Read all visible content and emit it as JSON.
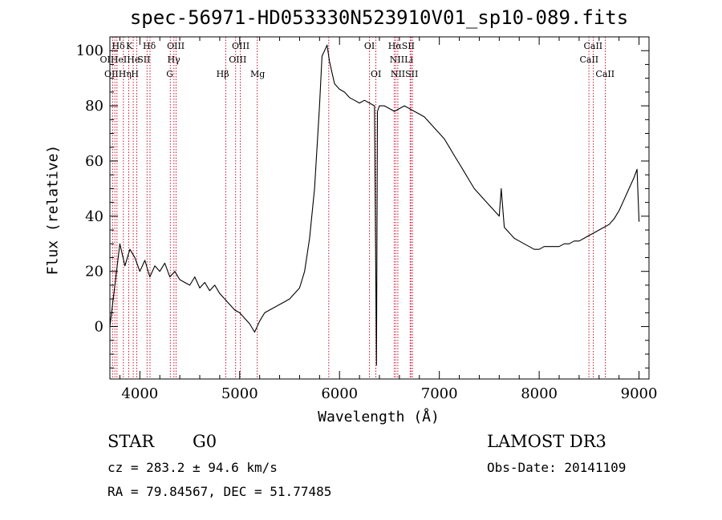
{
  "chart_data": {
    "type": "line",
    "title": "spec-56971-HD053330N523910V01_sp10-089.fits",
    "xlabel": "Wavelength (Å)",
    "ylabel": "Flux (relative)",
    "xlim": [
      3700,
      9100
    ],
    "ylim": [
      -19,
      105
    ],
    "xticks": [
      4000,
      5000,
      6000,
      7000,
      8000,
      9000
    ],
    "yticks": [
      0,
      20,
      40,
      60,
      80,
      100
    ],
    "grid": false,
    "series": [
      {
        "x": [
          3700,
          3750,
          3800,
          3850,
          3900,
          3950,
          4000,
          4050,
          4100,
          4150,
          4200,
          4250,
          4300,
          4350,
          4400,
          4450,
          4500,
          4550,
          4600,
          4650,
          4700,
          4750,
          4800,
          4850,
          4900,
          4950,
          5000,
          5050,
          5100,
          5150,
          5200,
          5250,
          5300,
          5350,
          5400,
          5450,
          5500,
          5550,
          5600,
          5650,
          5700,
          5750,
          5800,
          5825,
          5850,
          5875,
          5900,
          5950,
          6000,
          6050,
          6100,
          6150,
          6200,
          6250,
          6300,
          6350,
          6370,
          6380,
          6400,
          6450,
          6500,
          6550,
          6600,
          6650,
          6700,
          6750,
          6800,
          6850,
          6900,
          6950,
          7000,
          7050,
          7100,
          7150,
          7200,
          7250,
          7300,
          7350,
          7400,
          7450,
          7500,
          7550,
          7600,
          7620,
          7650,
          7700,
          7750,
          7800,
          7850,
          7900,
          7950,
          8000,
          8050,
          8100,
          8150,
          8200,
          8250,
          8300,
          8350,
          8400,
          8450,
          8500,
          8550,
          8600,
          8650,
          8700,
          8750,
          8800,
          8850,
          8900,
          8950,
          8980,
          9000
        ],
        "y": [
          0,
          15,
          30,
          22,
          28,
          25,
          20,
          24,
          18,
          22,
          20,
          23,
          18,
          20,
          17,
          16,
          15,
          18,
          14,
          16,
          13,
          15,
          12,
          10,
          8,
          6,
          5,
          3,
          1,
          -2,
          2,
          5,
          6,
          7,
          8,
          9,
          10,
          12,
          14,
          20,
          32,
          50,
          80,
          98,
          100,
          102,
          96,
          88,
          86,
          85,
          83,
          82,
          81,
          82,
          81,
          80,
          -14,
          78,
          80,
          80,
          79,
          78,
          79,
          80,
          79,
          78,
          77,
          76,
          74,
          72,
          70,
          68,
          65,
          62,
          59,
          56,
          53,
          50,
          48,
          46,
          44,
          42,
          40,
          50,
          36,
          34,
          32,
          31,
          30,
          29,
          28,
          28,
          29,
          29,
          29,
          29,
          30,
          30,
          31,
          31,
          32,
          33,
          34,
          35,
          36,
          37,
          39,
          42,
          46,
          50,
          54,
          57,
          38
        ]
      }
    ],
    "lines": [
      {
        "name": "OII",
        "x": 3727
      },
      {
        "name": "Hθ",
        "x": 3750
      },
      {
        "name": "Hη",
        "x": 3771
      },
      {
        "name": "Hζ",
        "x": 3835
      },
      {
        "name": "K",
        "x": 3889
      },
      {
        "name": "Hε",
        "x": 3934
      },
      {
        "name": "H",
        "x": 3969
      },
      {
        "name": "SII",
        "x": 4072
      },
      {
        "name": "Hδ",
        "x": 4102
      },
      {
        "name": "G",
        "x": 4305
      },
      {
        "name": "Hγ",
        "x": 4341
      },
      {
        "name": "OIII",
        "x": 4363
      },
      {
        "name": "Hβ",
        "x": 4861
      },
      {
        "name": "OIII",
        "x": 4959
      },
      {
        "name": "OIII",
        "x": 5007
      },
      {
        "name": "Mg",
        "x": 5175
      },
      {
        "name": "OI",
        "x": 5892
      },
      {
        "name": "OI",
        "x": 6300
      },
      {
        "name": "OI",
        "x": 6364
      },
      {
        "name": "NII",
        "x": 6548
      },
      {
        "name": "Hα",
        "x": 6563
      },
      {
        "name": "NII",
        "x": 6584
      },
      {
        "name": "Li",
        "x": 6708
      },
      {
        "name": "SII",
        "x": 6716
      },
      {
        "name": "SII",
        "x": 6731
      },
      {
        "name": "CaII",
        "x": 8498
      },
      {
        "name": "CaII",
        "x": 8542
      },
      {
        "name": "CaII",
        "x": 8662
      }
    ],
    "line_labels": [
      {
        "text": "Hδ",
        "x": 3785,
        "row": 1
      },
      {
        "text": "K",
        "x": 3895,
        "row": 1
      },
      {
        "text": "Hδ",
        "x": 4095,
        "row": 1
      },
      {
        "text": "OIII",
        "x": 4360,
        "row": 1
      },
      {
        "text": "OIII",
        "x": 5010,
        "row": 1
      },
      {
        "text": "OI",
        "x": 6300,
        "row": 1
      },
      {
        "text": "HαSII",
        "x": 6620,
        "row": 1
      },
      {
        "text": "CaII",
        "x": 8540,
        "row": 1
      },
      {
        "text": "OIHeIHe",
        "x": 3800,
        "row": 2
      },
      {
        "text": "SII",
        "x": 4040,
        "row": 2
      },
      {
        "text": "Hγ",
        "x": 4340,
        "row": 2
      },
      {
        "text": "OIII",
        "x": 4980,
        "row": 2
      },
      {
        "text": "NIILi",
        "x": 6620,
        "row": 2
      },
      {
        "text": "CaII",
        "x": 8500,
        "row": 2
      },
      {
        "text": "OIIHη",
        "x": 3780,
        "row": 3
      },
      {
        "text": "H",
        "x": 3950,
        "row": 3
      },
      {
        "text": "G",
        "x": 4300,
        "row": 3
      },
      {
        "text": "Hβ",
        "x": 4830,
        "row": 3
      },
      {
        "text": "Mg",
        "x": 5180,
        "row": 3
      },
      {
        "text": "OI",
        "x": 6365,
        "row": 3
      },
      {
        "text": "NIISII",
        "x": 6650,
        "row": 3
      },
      {
        "text": "CaII",
        "x": 8660,
        "row": 3
      }
    ]
  },
  "info": {
    "object_class": "STAR",
    "subclass": "G0",
    "survey": "LAMOST DR3",
    "cz": "cz = 283.2 ± 94.6 km/s",
    "obs_date": "Obs-Date: 20141109",
    "coords": "RA =  79.84567, DEC =  51.77485"
  }
}
